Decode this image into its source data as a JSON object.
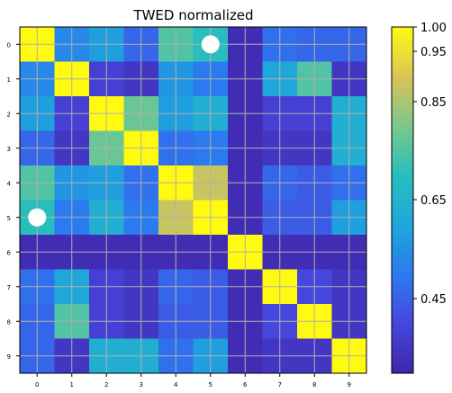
{
  "chart_data": {
    "type": "heatmap",
    "title": "TWED normalized",
    "x_ticks": [
      "0",
      "1",
      "2",
      "3",
      "4",
      "5",
      "6",
      "7",
      "8",
      "9"
    ],
    "y_ticks": [
      "0",
      "1",
      "2",
      "3",
      "4",
      "5",
      "6",
      "7",
      "8",
      "9"
    ],
    "matrix": [
      [
        1.0,
        0.53,
        0.58,
        0.46,
        0.75,
        0.7,
        0.32,
        0.48,
        0.46,
        0.46
      ],
      [
        0.53,
        1.0,
        0.38,
        0.35,
        0.56,
        0.5,
        0.32,
        0.6,
        0.75,
        0.35
      ],
      [
        0.58,
        0.38,
        1.0,
        0.78,
        0.58,
        0.63,
        0.32,
        0.38,
        0.38,
        0.63
      ],
      [
        0.46,
        0.35,
        0.78,
        1.0,
        0.48,
        0.5,
        0.32,
        0.35,
        0.35,
        0.63
      ],
      [
        0.75,
        0.56,
        0.58,
        0.48,
        1.0,
        0.88,
        0.32,
        0.46,
        0.44,
        0.48
      ],
      [
        0.7,
        0.5,
        0.63,
        0.5,
        0.88,
        1.0,
        0.32,
        0.44,
        0.44,
        0.58
      ],
      [
        0.32,
        0.32,
        0.32,
        0.32,
        0.32,
        0.32,
        1.0,
        0.32,
        0.32,
        0.32
      ],
      [
        0.48,
        0.6,
        0.38,
        0.35,
        0.46,
        0.44,
        0.32,
        1.0,
        0.4,
        0.35
      ],
      [
        0.46,
        0.75,
        0.38,
        0.35,
        0.44,
        0.44,
        0.32,
        0.4,
        1.0,
        0.35
      ],
      [
        0.46,
        0.35,
        0.63,
        0.63,
        0.48,
        0.58,
        0.32,
        0.35,
        0.35,
        1.0
      ]
    ],
    "markers": [
      {
        "row": 0,
        "col": 5,
        "color": "#ffffff"
      },
      {
        "row": 5,
        "col": 0,
        "color": "#ffffff"
      }
    ],
    "colorbar": {
      "min": 0.3,
      "max": 1.0,
      "scale": "nonlinear",
      "ticks": [
        "1.00",
        "0.95",
        "0.85",
        "0.65",
        "0.45"
      ],
      "tick_values": [
        1.0,
        0.95,
        0.85,
        0.65,
        0.45
      ]
    },
    "colormap": "parula",
    "grid": true,
    "grid_color": "#b0b0b0"
  }
}
